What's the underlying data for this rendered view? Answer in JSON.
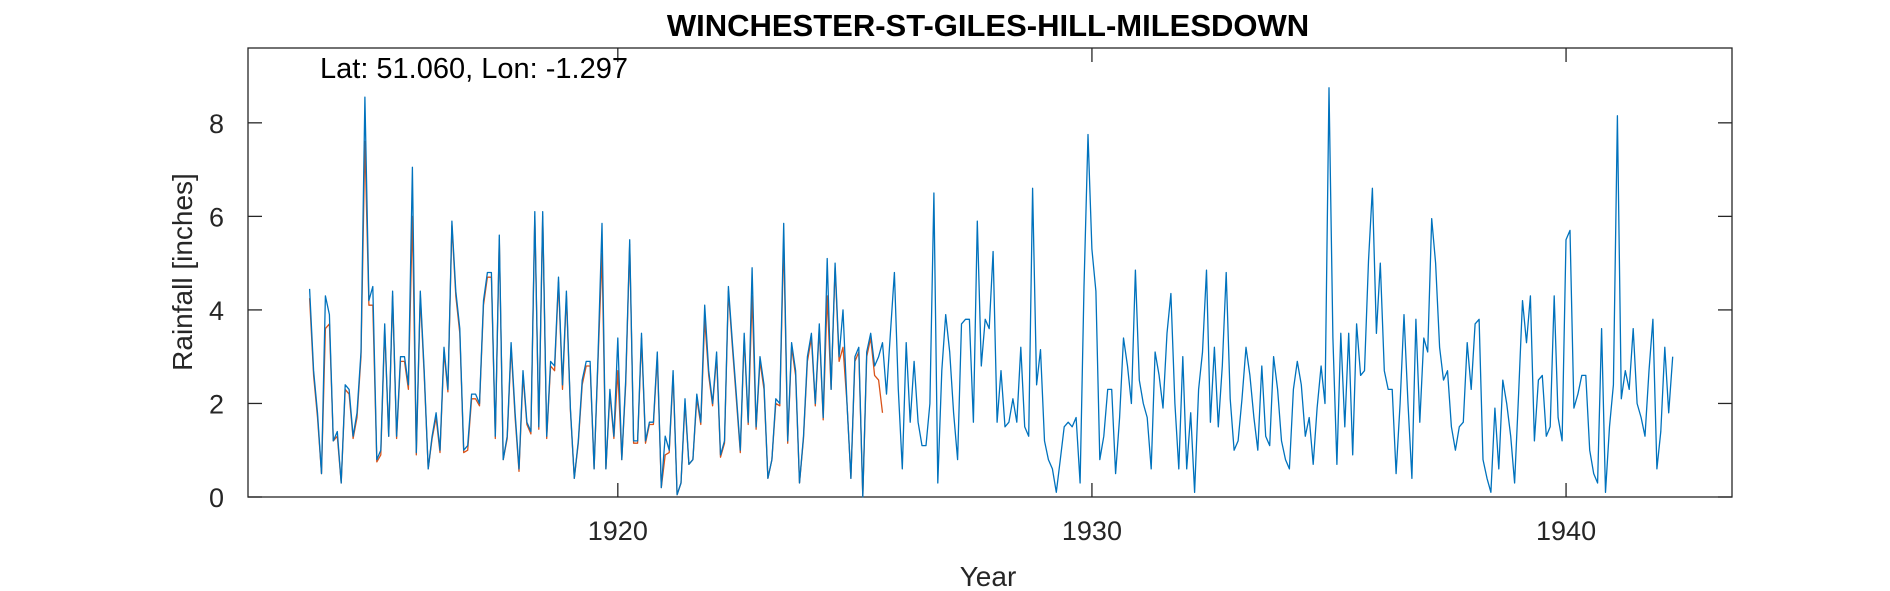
{
  "chart_data": {
    "type": "line",
    "title": "WINCHESTER-ST-GILES-HILL-MILESDOWN",
    "annotation": "Lat: 51.060, Lon: -1.297",
    "xlabel": "Year",
    "ylabel": "Rainfall [inches]",
    "xlim": [
      1912.2,
      1943.5
    ],
    "ylim": [
      0,
      9.6
    ],
    "xticks": [
      1920,
      1930,
      1940
    ],
    "yticks": [
      0,
      2,
      4,
      6,
      8
    ],
    "grid": false,
    "series": [
      {
        "color": "#0072BD",
        "x_start": 1913.5,
        "x_step": 0.08333,
        "values": [
          4.45,
          2.7,
          1.8,
          0.5,
          4.3,
          3.9,
          1.2,
          1.4,
          0.3,
          2.4,
          2.3,
          1.3,
          1.8,
          3.1,
          8.55,
          4.2,
          4.5,
          0.8,
          1.0,
          3.7,
          1.3,
          4.4,
          1.3,
          3.0,
          3.0,
          2.4,
          7.05,
          0.95,
          4.4,
          2.7,
          0.6,
          1.3,
          1.8,
          1.0,
          3.2,
          2.3,
          5.9,
          4.4,
          3.6,
          1.0,
          1.1,
          2.2,
          2.2,
          2.0,
          4.2,
          4.8,
          4.8,
          1.3,
          5.6,
          0.8,
          1.3,
          3.3,
          1.8,
          0.6,
          2.7,
          1.6,
          1.4,
          6.1,
          1.5,
          6.1,
          1.3,
          2.9,
          2.8,
          4.7,
          2.4,
          4.4,
          1.9,
          0.4,
          1.2,
          2.5,
          2.9,
          2.9,
          0.6,
          3.0,
          5.85,
          0.6,
          2.3,
          1.3,
          3.4,
          0.8,
          2.5,
          5.5,
          1.2,
          1.2,
          3.5,
          1.2,
          1.6,
          1.6,
          3.1,
          0.2,
          1.3,
          1.0,
          2.7,
          0.05,
          0.3,
          2.1,
          0.7,
          0.8,
          2.2,
          1.6,
          4.1,
          2.7,
          2.0,
          3.1,
          0.9,
          1.2,
          4.5,
          3.3,
          2.2,
          1.0,
          3.5,
          1.6,
          4.9,
          1.5,
          3.0,
          2.4,
          0.4,
          0.8,
          2.1,
          2.0,
          5.85,
          1.2,
          3.3,
          2.7,
          0.3,
          1.3,
          3.0,
          3.5,
          2.0,
          3.7,
          1.7,
          5.1,
          2.3,
          5.0,
          3.0,
          4.0,
          2.0,
          0.4,
          3.0,
          3.2,
          0.0,
          3.1,
          3.5,
          2.8,
          3.0,
          3.3,
          2.2,
          3.5,
          4.8,
          2.3,
          0.6,
          3.3,
          1.6,
          2.9,
          1.6,
          1.1,
          1.1,
          2.0,
          6.5,
          0.3,
          2.7,
          3.9,
          3.1,
          1.8,
          0.8,
          3.7,
          3.8,
          3.8,
          1.6,
          5.9,
          2.8,
          3.8,
          3.6,
          5.25,
          1.6,
          2.7,
          1.5,
          1.6,
          2.1,
          1.6,
          3.2,
          1.5,
          1.3,
          6.6,
          2.4,
          3.15,
          1.2,
          0.8,
          0.6,
          0.1,
          0.8,
          1.5,
          1.6,
          1.5,
          1.7,
          0.3,
          4.5,
          7.75,
          5.3,
          4.4,
          0.8,
          1.3,
          2.3,
          2.3,
          0.5,
          1.7,
          3.4,
          2.8,
          2.0,
          4.85,
          2.5,
          2.0,
          1.7,
          0.6,
          3.1,
          2.6,
          1.9,
          3.5,
          4.35,
          2.0,
          0.6,
          3.0,
          0.6,
          1.8,
          0.1,
          2.3,
          3.1,
          4.85,
          1.6,
          3.2,
          1.5,
          2.8,
          4.8,
          2.1,
          1.0,
          1.2,
          2.1,
          3.2,
          2.6,
          1.7,
          1.0,
          2.8,
          1.3,
          1.1,
          3.0,
          2.3,
          1.2,
          0.8,
          0.6,
          2.3,
          2.9,
          2.4,
          1.3,
          1.7,
          0.7,
          1.9,
          2.8,
          2.0,
          8.75,
          3.4,
          0.7,
          3.5,
          1.5,
          3.5,
          0.9,
          3.7,
          2.6,
          2.7,
          5.05,
          6.6,
          3.5,
          5.0,
          2.7,
          2.3,
          2.3,
          0.5,
          2.0,
          3.9,
          2.0,
          0.4,
          3.8,
          1.6,
          3.4,
          3.1,
          5.95,
          5.0,
          3.2,
          2.5,
          2.7,
          1.5,
          1.0,
          1.5,
          1.6,
          3.3,
          2.3,
          3.7,
          3.8,
          0.8,
          0.4,
          0.1,
          1.9,
          0.6,
          2.5,
          2.0,
          1.3,
          0.3,
          2.2,
          4.2,
          3.3,
          4.3,
          1.2,
          2.5,
          2.6,
          1.3,
          1.5,
          4.3,
          1.7,
          1.2,
          5.5,
          5.7,
          1.9,
          2.2,
          2.6,
          2.6,
          1.0,
          0.5,
          0.3,
          3.6,
          0.1,
          1.5,
          2.4,
          8.15,
          2.1,
          2.7,
          2.3,
          3.6,
          2.0,
          1.7,
          1.3,
          2.7,
          3.8,
          0.6,
          1.4,
          3.2,
          1.8,
          3.0
        ]
      },
      {
        "color": "#D95319",
        "x_start": 1913.5,
        "x_step": 0.08333,
        "values": [
          4.25,
          2.6,
          1.7,
          0.5,
          3.6,
          3.7,
          1.2,
          1.3,
          0.3,
          2.3,
          2.2,
          1.25,
          1.7,
          3.0,
          7.6,
          4.1,
          4.1,
          0.75,
          0.9,
          3.6,
          1.3,
          4.3,
          1.25,
          2.9,
          2.9,
          2.3,
          6.0,
          0.9,
          4.3,
          2.6,
          0.6,
          1.25,
          1.7,
          0.95,
          3.1,
          2.25,
          5.8,
          4.3,
          3.5,
          0.95,
          1.0,
          2.1,
          2.1,
          1.95,
          4.1,
          4.7,
          4.7,
          1.25,
          5.5,
          0.8,
          1.25,
          3.2,
          1.7,
          0.55,
          2.6,
          1.55,
          1.35,
          6.0,
          1.45,
          6.0,
          1.25,
          2.8,
          2.7,
          4.6,
          2.3,
          4.3,
          1.85,
          0.4,
          1.15,
          2.4,
          2.8,
          2.8,
          0.6,
          2.9,
          5.2,
          0.6,
          2.2,
          1.25,
          2.7,
          0.8,
          2.4,
          5.4,
          1.15,
          1.15,
          3.4,
          1.15,
          1.55,
          1.55,
          3.0,
          0.2,
          0.9,
          0.95,
          2.6,
          0.05,
          0.3,
          2.0,
          0.7,
          0.8,
          2.1,
          1.55,
          3.8,
          2.6,
          1.95,
          3.0,
          0.85,
          1.15,
          4.4,
          3.2,
          2.1,
          0.95,
          3.4,
          1.55,
          4.3,
          1.45,
          2.9,
          2.3,
          0.4,
          0.8,
          2.0,
          1.95,
          5.5,
          1.15,
          3.2,
          2.6,
          0.3,
          1.25,
          2.9,
          3.4,
          1.95,
          3.6,
          1.65,
          4.3,
          2.3,
          4.9,
          2.9,
          3.2,
          2.0,
          0.4,
          2.9,
          3.1,
          0.0,
          3.0,
          3.4,
          2.6,
          2.5,
          1.8
        ]
      }
    ]
  }
}
